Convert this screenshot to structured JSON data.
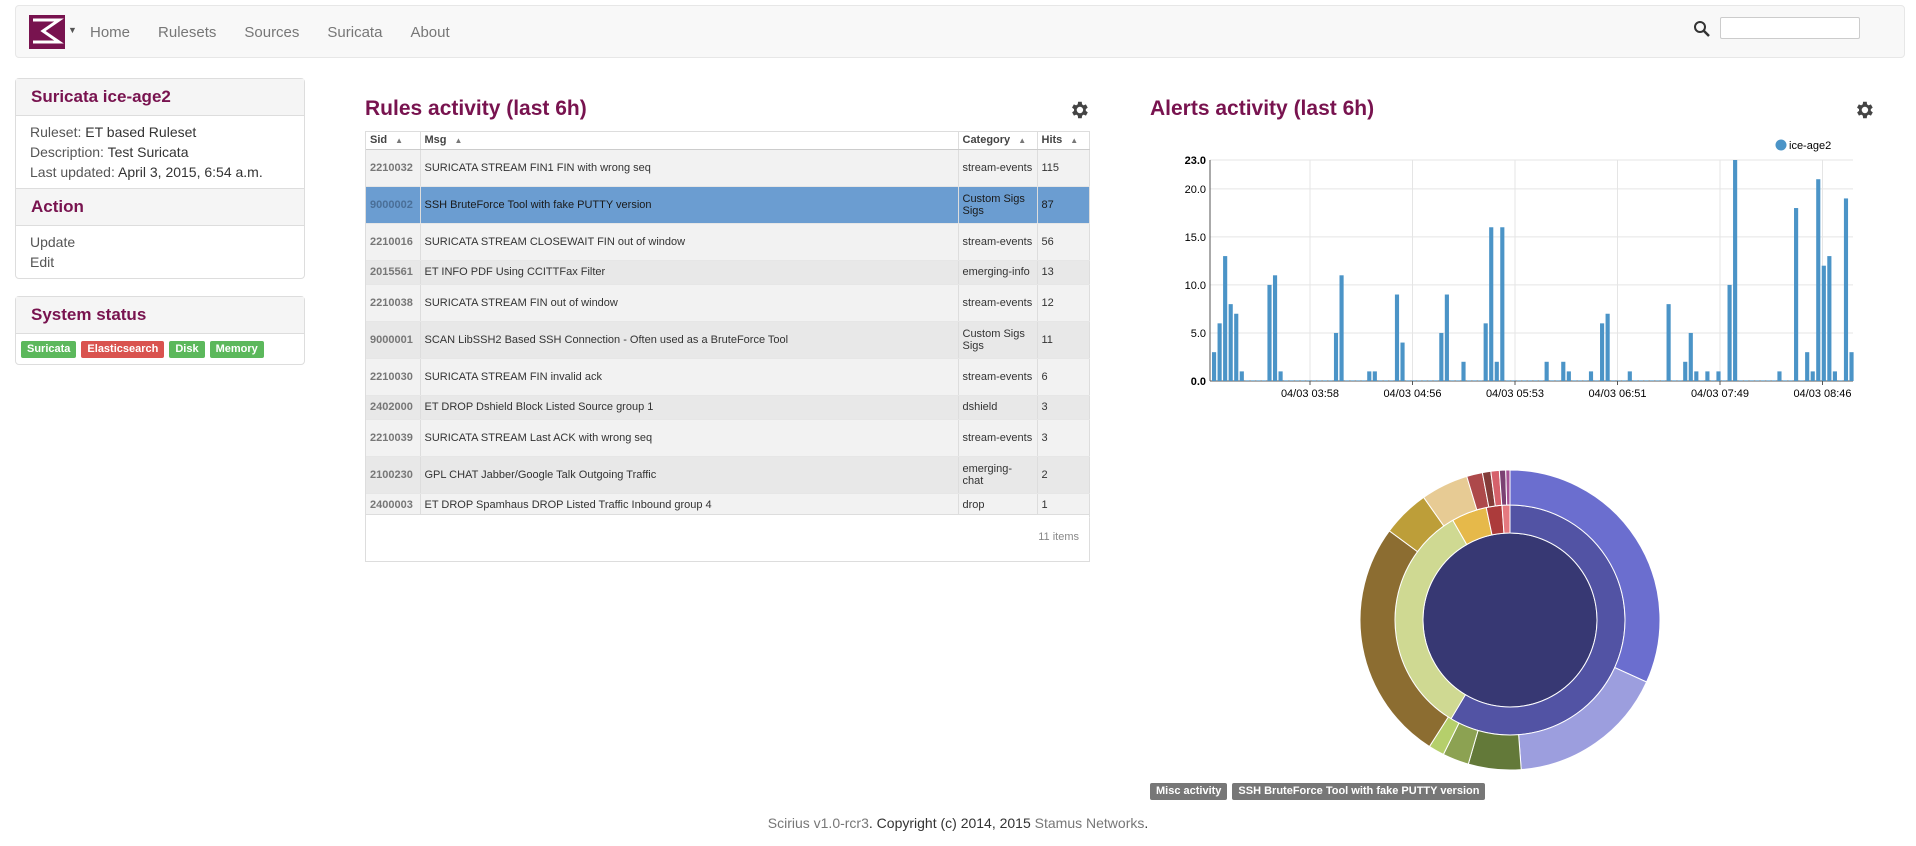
{
  "nav": {
    "items": [
      "Home",
      "Rulesets",
      "Sources",
      "Suricata",
      "About"
    ],
    "search_value": ""
  },
  "probe_panel": {
    "title": "Suricata ice-age2",
    "ruleset_label": "Ruleset:",
    "ruleset_value": "ET based Ruleset",
    "description_label": "Description:",
    "description_value": "Test Suricata",
    "updated_label": "Last updated:",
    "updated_value": "April 3, 2015, 6:54 a.m.",
    "action_title": "Action",
    "actions": [
      "Update",
      "Edit"
    ]
  },
  "system_status": {
    "title": "System status",
    "badges": [
      {
        "label": "Suricata",
        "state": "ok"
      },
      {
        "label": "Elasticsearch",
        "state": "err"
      },
      {
        "label": "Disk",
        "state": "ok"
      },
      {
        "label": "Memory",
        "state": "ok"
      }
    ]
  },
  "rules": {
    "title": "Rules activity (last 6h)",
    "columns": [
      "Sid",
      "Msg",
      "Category",
      "Hits"
    ],
    "rows": [
      {
        "sid": "2210032",
        "msg": "SURICATA STREAM FIN1 FIN with wrong seq",
        "category": "stream-events",
        "hits": "115"
      },
      {
        "sid": "9000002",
        "msg": "SSH BruteForce Tool with fake PUTTY version",
        "category": "Custom Sigs Sigs",
        "hits": "87"
      },
      {
        "sid": "2210016",
        "msg": "SURICATA STREAM CLOSEWAIT FIN out of window",
        "category": "stream-events",
        "hits": "56"
      },
      {
        "sid": "2015561",
        "msg": "ET INFO PDF Using CCITTFax Filter",
        "category": "emerging-info",
        "hits": "13"
      },
      {
        "sid": "2210038",
        "msg": "SURICATA STREAM FIN out of window",
        "category": "stream-events",
        "hits": "12"
      },
      {
        "sid": "9000001",
        "msg": "SCAN LibSSH2 Based SSH Connection - Often used as a BruteForce Tool",
        "category": "Custom Sigs Sigs",
        "hits": "11"
      },
      {
        "sid": "2210030",
        "msg": "SURICATA STREAM FIN invalid ack",
        "category": "stream-events",
        "hits": "6"
      },
      {
        "sid": "2402000",
        "msg": "ET DROP Dshield Block Listed Source group 1",
        "category": "dshield",
        "hits": "3"
      },
      {
        "sid": "2210039",
        "msg": "SURICATA STREAM Last ACK with wrong seq",
        "category": "stream-events",
        "hits": "3"
      },
      {
        "sid": "2100230",
        "msg": "GPL CHAT Jabber/Google Talk Outgoing Traffic",
        "category": "emerging-chat",
        "hits": "2"
      },
      {
        "sid": "2400003",
        "msg": "ET DROP Spamhaus DROP Listed Traffic Inbound group 4",
        "category": "drop",
        "hits": "1"
      }
    ],
    "selected_index": 1,
    "footer": "11 items"
  },
  "alerts": {
    "title": "Alerts activity (last 6h)",
    "legend_series": "ice-age2",
    "series_color": "#4b94c7",
    "breadcrumb_badges": [
      "Misc activity",
      "SSH BruteForce Tool with fake PUTTY version"
    ]
  },
  "chart_data": [
    {
      "type": "bar",
      "title": "",
      "series": [
        {
          "name": "ice-age2",
          "values": [
            3,
            6,
            13,
            8,
            7,
            1,
            0,
            0,
            0,
            0,
            10,
            11,
            1,
            0,
            0,
            0,
            0,
            0,
            0,
            0,
            0,
            0,
            5,
            11,
            0,
            0,
            0,
            0,
            1,
            1,
            0,
            0,
            0,
            9,
            4,
            0,
            0,
            0,
            0,
            0,
            0,
            5,
            9,
            0,
            0,
            2,
            0,
            0,
            0,
            6,
            16,
            2,
            16,
            0,
            0,
            0,
            0,
            0,
            0,
            0,
            2,
            0,
            0,
            2,
            1,
            0,
            0,
            0,
            1,
            0,
            6,
            7,
            0,
            0,
            0,
            1,
            0,
            0,
            0,
            0,
            0,
            0,
            8,
            0,
            0,
            2,
            5,
            1,
            0,
            1,
            0,
            1,
            0,
            10,
            23,
            0,
            0,
            0,
            0,
            0,
            0,
            0,
            1,
            0,
            0,
            18,
            0,
            3,
            1,
            21,
            12,
            13,
            1,
            0,
            19,
            3
          ]
        }
      ],
      "x_tick_labels": [
        "04/03 03:58",
        "04/03 04:56",
        "04/03 05:53",
        "04/03 06:51",
        "04/03 07:49",
        "04/03 08:46"
      ],
      "y_tick_labels": [
        "0.0",
        "5.0",
        "10.0",
        "15.0",
        "20.0",
        "23.0"
      ],
      "ylim": [
        0,
        23
      ],
      "legend": "top-right",
      "grid": true
    },
    {
      "type": "pie",
      "title": "",
      "variant": "sunburst",
      "rings": [
        {
          "level": 1,
          "slices": [
            {
              "value": 100,
              "color": "#373873"
            }
          ]
        },
        {
          "level": 2,
          "slices": [
            {
              "value": 53,
              "color": "#5253a4"
            },
            {
              "value": 30,
              "color": "#cfd992"
            },
            {
              "value": 4.5,
              "color": "#e6b94a"
            },
            {
              "value": 2,
              "color": "#ac3b3b"
            },
            {
              "value": 1,
              "color": "#e5797f"
            }
          ]
        },
        {
          "level": 3,
          "slices": [
            {
              "value": 28,
              "color": "#6b6ecf"
            },
            {
              "value": 15,
              "color": "#9c9ede"
            },
            {
              "value": 5,
              "color": "#637939"
            },
            {
              "value": 2.5,
              "color": "#8ca252"
            },
            {
              "value": 1.5,
              "color": "#b5cf6b"
            },
            {
              "value": 23,
              "color": "#8c6d31"
            },
            {
              "value": 4.5,
              "color": "#bd9e39"
            },
            {
              "value": 4.5,
              "color": "#e7cb94"
            },
            {
              "value": 1.5,
              "color": "#ad494a"
            },
            {
              "value": 0.8,
              "color": "#843c39"
            },
            {
              "value": 0.8,
              "color": "#d6616b"
            },
            {
              "value": 0.6,
              "color": "#7b4173"
            },
            {
              "value": 0.4,
              "color": "#a55194"
            }
          ]
        }
      ]
    }
  ],
  "footer": {
    "version": "Scirius v1.0-rcr3",
    "copyright": ". Copyright (c) 2014, 2015 ",
    "company": "Stamus Networks",
    "end": "."
  }
}
